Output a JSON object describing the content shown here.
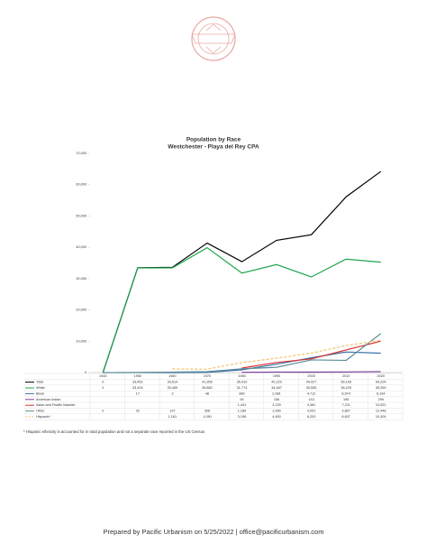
{
  "chart_data": {
    "type": "line",
    "title": "Population by Race",
    "subtitle": "Westchester - Playa del Rey CPA",
    "categories": [
      "1940",
      "1950",
      "1960",
      "1970",
      "1980",
      "1990",
      "2000",
      "2010",
      "2020"
    ],
    "ylim": [
      0,
      70000
    ],
    "yticks": [
      0,
      {
        "value": 10000,
        "label": "10,000"
      },
      {
        "value": 20000,
        "label": "20,000"
      },
      {
        "value": 30000,
        "label": "30,000"
      },
      {
        "value": 40000,
        "label": "40,000"
      },
      {
        "value": 50000,
        "label": "50,000"
      },
      {
        "value": 60000,
        "label": "60,000"
      },
      {
        "value": 70000,
        "label": "70,000"
      }
    ],
    "series": [
      {
        "name": "Total",
        "color": "#000000",
        "values": [
          0,
          33452,
          33614,
          41356,
          35410,
          42223,
          44027,
          56108,
          64224
        ],
        "value_labels": [
          "0",
          "33,452",
          "33,614",
          "41,356",
          "35,410",
          "42,223",
          "44,027",
          "56,108",
          "64,224"
        ]
      },
      {
        "name": "White",
        "color": "#1fa64e",
        "values": [
          0,
          33403,
          33459,
          39882,
          31774,
          34487,
          30535,
          36229,
          35259
        ],
        "value_labels": [
          "0",
          "33,403",
          "33,459",
          "39,882",
          "31,774",
          "34,487",
          "30,535",
          "36,229",
          "35,259"
        ]
      },
      {
        "name": "Black",
        "color": "#3b6fa8",
        "values": [
          null,
          17,
          3,
          48,
          860,
          2681,
          4712,
          6574,
          6194
        ],
        "value_labels": [
          null,
          "17",
          "3",
          "48",
          "860",
          "2,681",
          "4,712",
          "6,574",
          "6,194"
        ]
      },
      {
        "name": "American Indian",
        "color": "#7a3e9d",
        "values": [
          null,
          null,
          null,
          null,
          94,
          156,
          143,
          195,
          299
        ],
        "value_labels": [
          null,
          null,
          null,
          null,
          "94",
          "156",
          "143",
          "195",
          "299"
        ]
      },
      {
        "name": "Asian and Pacific Islander",
        "color": "#d8302f",
        "values": [
          null,
          null,
          null,
          null,
          1441,
          3229,
          4381,
          7211,
          10022
        ],
        "value_labels": [
          null,
          null,
          null,
          null,
          "1,441",
          "3,229",
          "4,381",
          "7,211",
          "10,022"
        ]
      },
      {
        "name": "Other",
        "color": "#5b8c99",
        "values": [
          0,
          32,
          137,
          306,
          1189,
          1690,
          4051,
          3897,
          12448
        ],
        "value_labels": [
          "0",
          "32",
          "137",
          "306",
          "1,189",
          "1,690",
          "4,051",
          "3,897",
          "12,448"
        ]
      },
      {
        "name": "Hispanic*",
        "color": "#f3c26b",
        "dashed": true,
        "values": [
          null,
          null,
          1161,
          1090,
          3196,
          4600,
          6203,
          8637,
          10304
        ],
        "value_labels": [
          null,
          null,
          "1,161",
          "1,090",
          "3,196",
          "4,600",
          "6,203",
          "8,637",
          "10,304"
        ]
      }
    ],
    "note": "* Hispanic ethnicity is accounted for in total population and not a separate race reported in the US Census"
  },
  "footer": "Prepared by Pacific Urbanism on 5/25/2022 | office@pacificurbanism.com"
}
